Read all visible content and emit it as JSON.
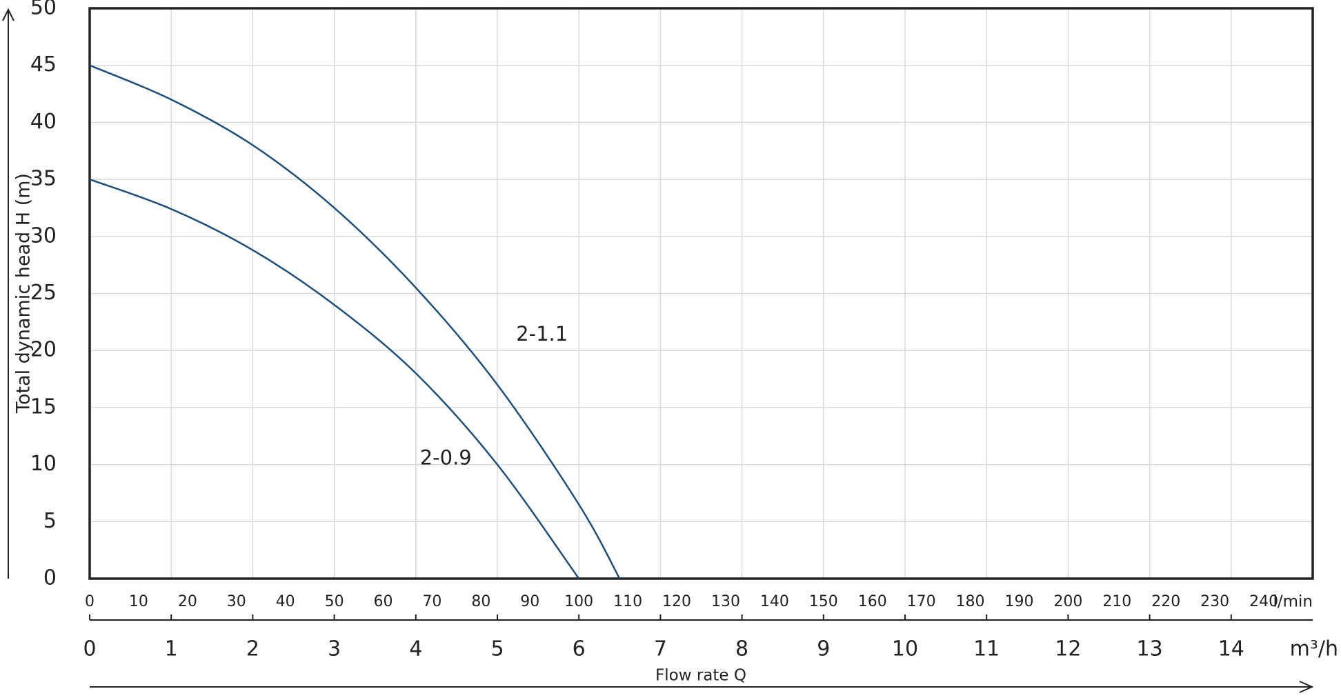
{
  "chart_data": {
    "type": "line",
    "x_label": "Flow rate Q",
    "y_label": "Total dynamic head H (m)",
    "x_unit": "m³/h",
    "x2_unit": "l/min",
    "xlim": [
      0,
      15
    ],
    "xticks": [
      0,
      1,
      2,
      3,
      4,
      5,
      6,
      7,
      8,
      9,
      10,
      11,
      12,
      13,
      14
    ],
    "x2lim": [
      0,
      250
    ],
    "x2ticks": [
      0,
      10,
      20,
      30,
      40,
      50,
      60,
      70,
      80,
      90,
      100,
      110,
      120,
      130,
      140,
      150,
      160,
      170,
      180,
      190,
      200,
      210,
      220,
      230,
      240
    ],
    "ylim": [
      0,
      50
    ],
    "yticks": [
      0,
      5,
      10,
      15,
      20,
      25,
      30,
      35,
      40,
      45,
      50
    ],
    "grid": true,
    "series": [
      {
        "name": "2-1.1",
        "color": "#1d4f7a",
        "x": [
          0,
          1,
          2,
          3,
          4,
          5,
          6,
          6.5
        ],
        "values": [
          45,
          42,
          38,
          32.5,
          25.5,
          17,
          6.5,
          0
        ]
      },
      {
        "name": "2-0.9",
        "color": "#1d4f7a",
        "x": [
          0,
          1,
          2,
          3,
          4,
          5,
          6
        ],
        "values": [
          35,
          32.4,
          28.8,
          24,
          18,
          10,
          0
        ]
      }
    ]
  }
}
